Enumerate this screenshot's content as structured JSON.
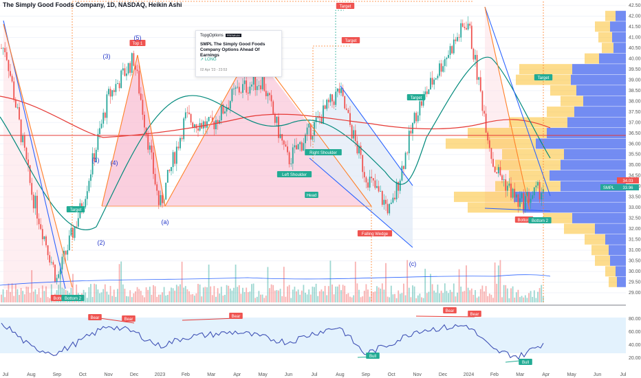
{
  "header": {
    "title": "The Simply Good Foods Company, 1D, NASDAQ, Heikin Ashi"
  },
  "idea_card": {
    "brand": "TopgOptions",
    "badge": "PREMIUM",
    "headline": "SMPL The Simply Good Foods Company Options Ahead Of Earnings",
    "direction": "↗ LONG",
    "date": "02 Apr '23 - 23:53"
  },
  "colors": {
    "up": "#26a69a",
    "down": "#ef5350",
    "pattern_fill": "#f8bbd0",
    "wedge_line": "#2962ff",
    "wedge_fill": "#d1e3ff",
    "ma_red": "#e53935",
    "ma_green": "#00897b",
    "ma_blue": "#2962ff",
    "vp_blue": "#5a78f0",
    "vp_orange": "#fbc02d",
    "rsi_line": "#3f51b5",
    "rsi_band": "#e3f2fd"
  },
  "price_axis": {
    "ticks": [
      "42.50",
      "42.00",
      "41.50",
      "41.00",
      "40.50",
      "40.00",
      "39.50",
      "39.00",
      "38.50",
      "38.00",
      "37.50",
      "37.00",
      "36.50",
      "36.00",
      "35.50",
      "35.00",
      "34.50",
      "34.00",
      "33.50",
      "33.00",
      "32.50",
      "32.00",
      "31.50",
      "31.00",
      "30.50",
      "30.00",
      "29.50",
      "29.00"
    ],
    "current_label": "SMPL",
    "current_value": "33.96",
    "badge_value": "34.03"
  },
  "rsi_axis": {
    "ticks": [
      "80.00",
      "60.00",
      "40.00",
      "20.00"
    ]
  },
  "time_axis": {
    "labels": [
      "Jul",
      "Aug",
      "Sep",
      "Oct",
      "Nov",
      "Dec",
      "2023",
      "Feb",
      "Mar",
      "Apr",
      "May",
      "Jun",
      "Jul",
      "Aug",
      "Sep",
      "Oct",
      "Nov",
      "Dec",
      "2024",
      "Feb",
      "Mar",
      "Apr",
      "May",
      "Jun",
      "Jul"
    ]
  },
  "chart_data": {
    "type": "candlestick",
    "title": "The Simply Good Foods Company, 1D, NASDAQ, Heikin Ashi",
    "ylim": [
      29.0,
      42.5
    ],
    "x": [
      "Jul",
      "Aug",
      "Sep",
      "Oct",
      "Nov",
      "Dec",
      "2023",
      "Feb",
      "Mar",
      "Apr",
      "May",
      "Jun",
      "Jul",
      "Aug",
      "Sep",
      "Oct",
      "Nov",
      "Dec",
      "2024",
      "Feb",
      "Mar",
      "Apr"
    ],
    "close": [
      40.5,
      33.8,
      29.6,
      33.2,
      38.2,
      40.0,
      33.0,
      37.2,
      36.8,
      38.5,
      39.0,
      35.2,
      36.8,
      38.5,
      34.6,
      32.8,
      37.5,
      39.8,
      41.8,
      35.0,
      33.2,
      33.96
    ],
    "rsi": [
      70,
      36,
      27,
      48,
      70,
      60,
      38,
      52,
      56,
      60,
      52,
      44,
      58,
      68,
      26,
      42,
      62,
      66,
      70,
      32,
      22,
      44
    ],
    "annotations": [
      "Top 1",
      "Target",
      "Target",
      "Target",
      "Target",
      "Target",
      "Left Shoulder",
      "Head",
      "Right Shoulder",
      "Falling Wedge",
      "Bottom",
      "Bottom 2",
      "Bottom",
      "Bottom 2",
      "Bear",
      "Bear",
      "Bear",
      "Bear",
      "Bear",
      "Bull",
      "Bull"
    ],
    "waves": [
      "(1)",
      "(2)",
      "(3)",
      "(4)",
      "(5)",
      "(a)",
      "(c)"
    ]
  }
}
